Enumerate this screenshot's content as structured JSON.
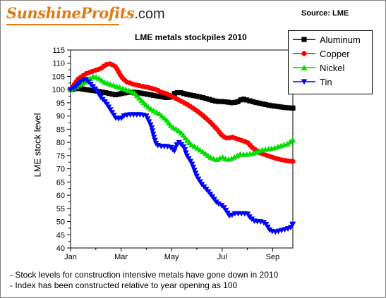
{
  "logo": {
    "script_text": "SunshineProfits",
    "suffix_text": ".com"
  },
  "source_text": "Source: LME",
  "notes": [
    "- Stock levels for construction intensive metals have gone down in 2010",
    "- Index has been constructed relative to year opening as 100"
  ],
  "chart_data": {
    "type": "line",
    "title": "LME metals stockpiles 2010",
    "ylabel": "LME stock level",
    "xlabel": "",
    "ylim": [
      40,
      115
    ],
    "y_ticks": [
      40,
      45,
      50,
      55,
      60,
      65,
      70,
      75,
      80,
      85,
      90,
      95,
      100,
      105,
      110,
      115
    ],
    "x_ticks": [
      "Jan",
      "Mar",
      "May",
      "Jul",
      "Sep"
    ],
    "x_tick_months": [
      0,
      2,
      4,
      6,
      8
    ],
    "xlim_months": [
      0,
      8.8
    ],
    "grid": false,
    "legend_position": "top-right",
    "series": [
      {
        "name": "Aluminum",
        "color": "#000000",
        "marker": "square",
        "points": [
          [
            0,
            100
          ],
          [
            0.3,
            100.5
          ],
          [
            0.6,
            100
          ],
          [
            1,
            99.5
          ],
          [
            1.4,
            98.8
          ],
          [
            1.8,
            98
          ],
          [
            2,
            98.5
          ],
          [
            2.3,
            99
          ],
          [
            2.6,
            99
          ],
          [
            3,
            98.3
          ],
          [
            3.3,
            97.8
          ],
          [
            3.6,
            97.3
          ],
          [
            3.8,
            97
          ],
          [
            4,
            97.2
          ],
          [
            4.1,
            98.5
          ],
          [
            4.3,
            99
          ],
          [
            4.6,
            98.2
          ],
          [
            5,
            97.5
          ],
          [
            5.3,
            96.8
          ],
          [
            5.6,
            96
          ],
          [
            5.8,
            95.5
          ],
          [
            6,
            95.5
          ],
          [
            6.2,
            95.3
          ],
          [
            6.4,
            95
          ],
          [
            6.6,
            95.3
          ],
          [
            6.8,
            96.5
          ],
          [
            7,
            96
          ],
          [
            7.3,
            95.2
          ],
          [
            7.6,
            94.6
          ],
          [
            7.9,
            94
          ],
          [
            8.2,
            93.6
          ],
          [
            8.5,
            93.2
          ],
          [
            8.8,
            93
          ]
        ]
      },
      {
        "name": "Copper",
        "color": "#ff0000",
        "marker": "circle",
        "points": [
          [
            0,
            100
          ],
          [
            0.3,
            104
          ],
          [
            0.6,
            106
          ],
          [
            0.9,
            107
          ],
          [
            1.2,
            108
          ],
          [
            1.4,
            109.5
          ],
          [
            1.6,
            109.8
          ],
          [
            1.8,
            108.5
          ],
          [
            2,
            105
          ],
          [
            2.2,
            103
          ],
          [
            2.5,
            102
          ],
          [
            2.8,
            101.3
          ],
          [
            3,
            101
          ],
          [
            3.2,
            100.5
          ],
          [
            3.4,
            100
          ],
          [
            3.6,
            99
          ],
          [
            3.8,
            98.5
          ],
          [
            4,
            97.5
          ],
          [
            4.3,
            96
          ],
          [
            4.6,
            94.5
          ],
          [
            5,
            92
          ],
          [
            5.2,
            90.5
          ],
          [
            5.5,
            88
          ],
          [
            5.8,
            85
          ],
          [
            6,
            82.5
          ],
          [
            6.2,
            81.5
          ],
          [
            6.4,
            82
          ],
          [
            6.7,
            81
          ],
          [
            7,
            80
          ],
          [
            7.2,
            78
          ],
          [
            7.5,
            76
          ],
          [
            7.8,
            75
          ],
          [
            8.1,
            74
          ],
          [
            8.4,
            73.3
          ],
          [
            8.6,
            73
          ],
          [
            8.8,
            72.8
          ]
        ]
      },
      {
        "name": "Nickel",
        "color": "#00dd00",
        "marker": "triangle-up",
        "points": [
          [
            0,
            100
          ],
          [
            0.3,
            101.5
          ],
          [
            0.6,
            103
          ],
          [
            0.9,
            105
          ],
          [
            1.1,
            104.5
          ],
          [
            1.3,
            103
          ],
          [
            1.6,
            102
          ],
          [
            1.9,
            101
          ],
          [
            2.2,
            100
          ],
          [
            2.5,
            99
          ],
          [
            2.8,
            96
          ],
          [
            3,
            94
          ],
          [
            3.2,
            92.5
          ],
          [
            3.5,
            91
          ],
          [
            3.8,
            88.5
          ],
          [
            4,
            86
          ],
          [
            4.2,
            85
          ],
          [
            4.4,
            83.5
          ],
          [
            4.6,
            81
          ],
          [
            4.8,
            79
          ],
          [
            5,
            78
          ],
          [
            5.3,
            76
          ],
          [
            5.6,
            74
          ],
          [
            5.8,
            73.5
          ],
          [
            6,
            74.5
          ],
          [
            6.2,
            73.5
          ],
          [
            6.4,
            74
          ],
          [
            6.7,
            75.5
          ],
          [
            7,
            75.5
          ],
          [
            7.3,
            76
          ],
          [
            7.5,
            77
          ],
          [
            7.8,
            77.5
          ],
          [
            8.1,
            78
          ],
          [
            8.4,
            79
          ],
          [
            8.6,
            79.5
          ],
          [
            8.8,
            81
          ]
        ]
      },
      {
        "name": "Tin",
        "color": "#0000ff",
        "marker": "triangle-down",
        "points": [
          [
            0,
            100
          ],
          [
            0.2,
            101
          ],
          [
            0.4,
            103
          ],
          [
            0.6,
            104
          ],
          [
            0.8,
            102
          ],
          [
            1,
            100
          ],
          [
            1.2,
            97
          ],
          [
            1.4,
            95
          ],
          [
            1.6,
            92
          ],
          [
            1.8,
            89
          ],
          [
            2,
            89
          ],
          [
            2.1,
            90
          ],
          [
            2.3,
            90.5
          ],
          [
            2.6,
            90.5
          ],
          [
            2.8,
            90.5
          ],
          [
            3,
            90
          ],
          [
            3.1,
            88
          ],
          [
            3.2,
            86
          ],
          [
            3.3,
            82
          ],
          [
            3.4,
            79
          ],
          [
            3.6,
            78.5
          ],
          [
            3.8,
            78.5
          ],
          [
            4,
            78
          ],
          [
            4.1,
            76.5
          ],
          [
            4.2,
            79
          ],
          [
            4.3,
            80
          ],
          [
            4.5,
            78
          ],
          [
            4.6,
            75
          ],
          [
            4.8,
            72
          ],
          [
            5,
            67
          ],
          [
            5.2,
            64
          ],
          [
            5.4,
            62
          ],
          [
            5.6,
            59.5
          ],
          [
            5.8,
            57
          ],
          [
            6,
            56
          ],
          [
            6.1,
            55
          ],
          [
            6.3,
            52
          ],
          [
            6.5,
            53
          ],
          [
            6.8,
            53
          ],
          [
            7,
            53
          ],
          [
            7.1,
            51.5
          ],
          [
            7.3,
            50
          ],
          [
            7.5,
            50
          ],
          [
            7.7,
            49.5
          ],
          [
            7.9,
            46.5
          ],
          [
            8.1,
            46
          ],
          [
            8.3,
            46.5
          ],
          [
            8.5,
            47
          ],
          [
            8.7,
            47.5
          ],
          [
            8.8,
            49
          ]
        ]
      }
    ]
  }
}
